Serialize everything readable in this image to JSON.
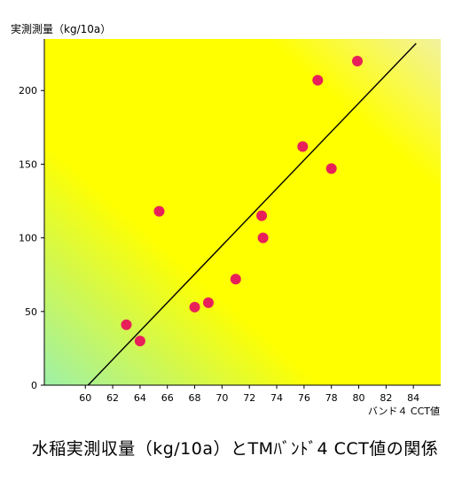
{
  "chart_data": {
    "type": "scatter",
    "ylabel": "実測測量（kg/10a）",
    "xlabel": "バンド４ CCT値",
    "caption": "水稲実測収量（kg/10a）とTMﾊﾞﾝﾄﾞ4 CCT値の関係",
    "xlim": [
      57,
      86
    ],
    "ylim": [
      0,
      235
    ],
    "xticks": [
      60,
      62,
      64,
      66,
      68,
      70,
      72,
      74,
      76,
      78,
      80,
      82,
      84
    ],
    "yticks": [
      0,
      50,
      100,
      150,
      200
    ],
    "points": [
      {
        "x": 63,
        "y": 41
      },
      {
        "x": 64,
        "y": 30
      },
      {
        "x": 65.4,
        "y": 118
      },
      {
        "x": 68,
        "y": 53
      },
      {
        "x": 69,
        "y": 56
      },
      {
        "x": 71,
        "y": 72
      },
      {
        "x": 72.9,
        "y": 115
      },
      {
        "x": 73,
        "y": 100
      },
      {
        "x": 75.9,
        "y": 162
      },
      {
        "x": 77,
        "y": 207
      },
      {
        "x": 78,
        "y": 147
      },
      {
        "x": 79.9,
        "y": 220
      }
    ],
    "fit_line": {
      "x1": 60.2,
      "y1": 0,
      "x2": 84.2,
      "y2": 232
    },
    "colors": {
      "marker": "#e8205a",
      "line": "#000000",
      "bg_corner_low": "#9ef0a8",
      "bg_mid": "#ffff00",
      "bg_corner_high": "#f2f2a0"
    }
  }
}
